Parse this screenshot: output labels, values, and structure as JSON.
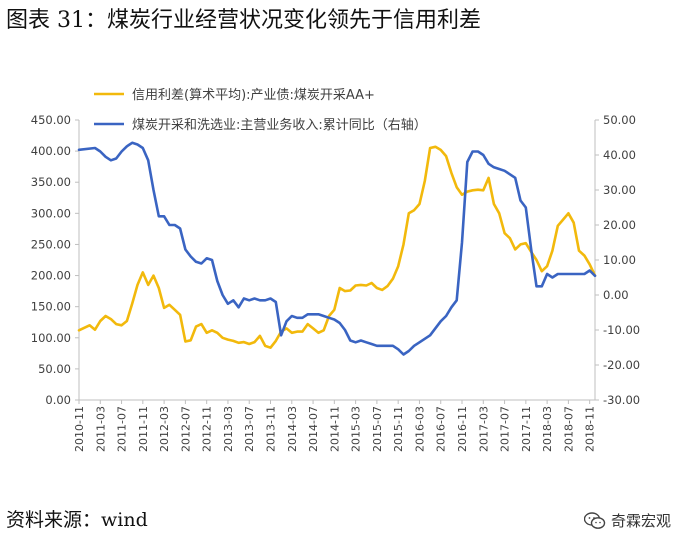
{
  "title": "图表 31：煤炭行业经营状况变化领先于信用利差",
  "source": "资料来源：wind",
  "watermark": {
    "text": "奇霖宏观",
    "icon": "wechat-icon"
  },
  "colors": {
    "credit_spread": "#F2B90C",
    "revenue_growth": "#3A64C2",
    "axis": "#BFBFBF",
    "text": "#404040"
  },
  "chart_data": {
    "type": "line",
    "legend_position": "top",
    "y_left": {
      "min": 0,
      "max": 450,
      "step": 50,
      "ticks": [
        "0.00",
        "50.00",
        "100.00",
        "150.00",
        "200.00",
        "250.00",
        "300.00",
        "350.00",
        "400.00",
        "450.00"
      ]
    },
    "y_right": {
      "min": -30,
      "max": 50,
      "step": 10,
      "ticks": [
        "-30.00",
        "-20.00",
        "-10.00",
        "0.00",
        "10.00",
        "20.00",
        "30.00",
        "40.00",
        "50.00"
      ]
    },
    "x_range": [
      "2010-11",
      "2018-12"
    ],
    "x_ticks": [
      "2010-11",
      "2011-03",
      "2011-07",
      "2011-11",
      "2012-03",
      "2012-07",
      "2012-11",
      "2013-03",
      "2013-07",
      "2013-11",
      "2014-03",
      "2014-07",
      "2014-11",
      "2015-03",
      "2015-07",
      "2015-11",
      "2016-03",
      "2016-07",
      "2016-11",
      "2017-03",
      "2017-07",
      "2017-11",
      "2018-03",
      "2018-07",
      "2018-11"
    ],
    "series": [
      {
        "name": "信用利差(算术平均):产业债:煤炭开采AA+",
        "axis": "left",
        "color_key": "credit_spread",
        "points": [
          [
            "2010-11",
            112
          ],
          [
            "2011-01",
            120
          ],
          [
            "2011-02",
            113
          ],
          [
            "2011-03",
            127
          ],
          [
            "2011-04",
            135
          ],
          [
            "2011-05",
            130
          ],
          [
            "2011-06",
            122
          ],
          [
            "2011-07",
            120
          ],
          [
            "2011-08",
            127
          ],
          [
            "2011-09",
            155
          ],
          [
            "2011-10",
            185
          ],
          [
            "2011-11",
            205
          ],
          [
            "2011-12",
            185
          ],
          [
            "2012-01",
            200
          ],
          [
            "2012-02",
            180
          ],
          [
            "2012-03",
            148
          ],
          [
            "2012-04",
            153
          ],
          [
            "2012-05",
            145
          ],
          [
            "2012-06",
            137
          ],
          [
            "2012-07",
            94
          ],
          [
            "2012-08",
            96
          ],
          [
            "2012-09",
            118
          ],
          [
            "2012-10",
            122
          ],
          [
            "2012-11",
            108
          ],
          [
            "2012-12",
            112
          ],
          [
            "2013-01",
            108
          ],
          [
            "2013-02",
            100
          ],
          [
            "2013-03",
            97
          ],
          [
            "2013-04",
            95
          ],
          [
            "2013-05",
            92
          ],
          [
            "2013-06",
            93
          ],
          [
            "2013-07",
            90
          ],
          [
            "2013-08",
            93
          ],
          [
            "2013-09",
            103
          ],
          [
            "2013-10",
            87
          ],
          [
            "2013-11",
            84
          ],
          [
            "2013-12",
            95
          ],
          [
            "2014-01",
            110
          ],
          [
            "2014-02",
            115
          ],
          [
            "2014-03",
            108
          ],
          [
            "2014-04",
            110
          ],
          [
            "2014-05",
            110
          ],
          [
            "2014-06",
            122
          ],
          [
            "2014-07",
            115
          ],
          [
            "2014-08",
            108
          ],
          [
            "2014-09",
            112
          ],
          [
            "2014-10",
            135
          ],
          [
            "2014-11",
            145
          ],
          [
            "2014-12",
            180
          ],
          [
            "2015-01",
            175
          ],
          [
            "2015-02",
            176
          ],
          [
            "2015-03",
            184
          ],
          [
            "2015-04",
            185
          ],
          [
            "2015-05",
            184
          ],
          [
            "2015-06",
            188
          ],
          [
            "2015-07",
            180
          ],
          [
            "2015-08",
            177
          ],
          [
            "2015-09",
            183
          ],
          [
            "2015-10",
            195
          ],
          [
            "2015-11",
            215
          ],
          [
            "2015-12",
            250
          ],
          [
            "2016-01",
            300
          ],
          [
            "2016-02",
            305
          ],
          [
            "2016-03",
            315
          ],
          [
            "2016-04",
            352
          ],
          [
            "2016-05",
            405
          ],
          [
            "2016-06",
            407
          ],
          [
            "2016-07",
            402
          ],
          [
            "2016-08",
            392
          ],
          [
            "2016-09",
            365
          ],
          [
            "2016-10",
            342
          ],
          [
            "2016-11",
            330
          ],
          [
            "2016-12",
            335
          ],
          [
            "2017-01",
            337
          ],
          [
            "2017-02",
            338
          ],
          [
            "2017-03",
            337
          ],
          [
            "2017-04",
            357
          ],
          [
            "2017-05",
            315
          ],
          [
            "2017-06",
            300
          ],
          [
            "2017-07",
            268
          ],
          [
            "2017-08",
            260
          ],
          [
            "2017-09",
            242
          ],
          [
            "2017-10",
            250
          ],
          [
            "2017-11",
            252
          ],
          [
            "2017-12",
            238
          ],
          [
            "2018-01",
            225
          ],
          [
            "2018-02",
            207
          ],
          [
            "2018-03",
            215
          ],
          [
            "2018-04",
            240
          ],
          [
            "2018-05",
            280
          ],
          [
            "2018-06",
            290
          ],
          [
            "2018-07",
            300
          ],
          [
            "2018-08",
            285
          ],
          [
            "2018-09",
            240
          ],
          [
            "2018-10",
            232
          ],
          [
            "2018-11",
            218
          ],
          [
            "2018-12",
            200
          ]
        ]
      },
      {
        "name": "煤炭开采和洗选业:主营业务收入:累计同比（右轴）",
        "axis": "right",
        "color_key": "revenue_growth",
        "points": [
          [
            "2010-11",
            41.5
          ],
          [
            "2011-02",
            42
          ],
          [
            "2011-03",
            41
          ],
          [
            "2011-04",
            39.5
          ],
          [
            "2011-05",
            38.5
          ],
          [
            "2011-06",
            39
          ],
          [
            "2011-07",
            41
          ],
          [
            "2011-08",
            42.5
          ],
          [
            "2011-09",
            43.5
          ],
          [
            "2011-10",
            43
          ],
          [
            "2011-11",
            42
          ],
          [
            "2011-12",
            38.5
          ],
          [
            "2012-01",
            30
          ],
          [
            "2012-02",
            22.5
          ],
          [
            "2012-03",
            22.5
          ],
          [
            "2012-04",
            20
          ],
          [
            "2012-05",
            20
          ],
          [
            "2012-06",
            19
          ],
          [
            "2012-07",
            13
          ],
          [
            "2012-08",
            11
          ],
          [
            "2012-09",
            9.5
          ],
          [
            "2012-10",
            9
          ],
          [
            "2012-11",
            10.5
          ],
          [
            "2012-12",
            10
          ],
          [
            "2013-01",
            4
          ],
          [
            "2013-02",
            0
          ],
          [
            "2013-03",
            -2.5
          ],
          [
            "2013-04",
            -1.5
          ],
          [
            "2013-05",
            -3.5
          ],
          [
            "2013-06",
            -1
          ],
          [
            "2013-07",
            -1.5
          ],
          [
            "2013-08",
            -1
          ],
          [
            "2013-09",
            -1.5
          ],
          [
            "2013-10",
            -1.5
          ],
          [
            "2013-11",
            -1
          ],
          [
            "2013-12",
            -2
          ],
          [
            "2014-01",
            -11.5
          ],
          [
            "2014-02",
            -7.5
          ],
          [
            "2014-03",
            -6
          ],
          [
            "2014-04",
            -6.5
          ],
          [
            "2014-05",
            -6.5
          ],
          [
            "2014-06",
            -5.5
          ],
          [
            "2014-07",
            -5.5
          ],
          [
            "2014-08",
            -5.5
          ],
          [
            "2014-09",
            -6
          ],
          [
            "2014-10",
            -6.5
          ],
          [
            "2014-11",
            -7
          ],
          [
            "2014-12",
            -8
          ],
          [
            "2015-01",
            -10
          ],
          [
            "2015-02",
            -13
          ],
          [
            "2015-03",
            -13.5
          ],
          [
            "2015-04",
            -13
          ],
          [
            "2015-05",
            -13.5
          ],
          [
            "2015-06",
            -14
          ],
          [
            "2015-07",
            -14.5
          ],
          [
            "2015-08",
            -14.5
          ],
          [
            "2015-09",
            -14.5
          ],
          [
            "2015-10",
            -14.5
          ],
          [
            "2015-11",
            -15.5
          ],
          [
            "2015-12",
            -17
          ],
          [
            "2016-01",
            -16
          ],
          [
            "2016-02",
            -14.5
          ],
          [
            "2016-03",
            -13.5
          ],
          [
            "2016-04",
            -12.5
          ],
          [
            "2016-05",
            -11.5
          ],
          [
            "2016-06",
            -9.5
          ],
          [
            "2016-07",
            -7.5
          ],
          [
            "2016-08",
            -6
          ],
          [
            "2016-09",
            -3.5
          ],
          [
            "2016-10",
            -1.5
          ],
          [
            "2016-11",
            15
          ],
          [
            "2016-12",
            38
          ],
          [
            "2017-01",
            41
          ],
          [
            "2017-02",
            41
          ],
          [
            "2017-03",
            40
          ],
          [
            "2017-04",
            37.5
          ],
          [
            "2017-05",
            36.5
          ],
          [
            "2017-06",
            36
          ],
          [
            "2017-07",
            35.5
          ],
          [
            "2017-08",
            34.5
          ],
          [
            "2017-09",
            33.5
          ],
          [
            "2017-10",
            27
          ],
          [
            "2017-11",
            25
          ],
          [
            "2017-12",
            13
          ],
          [
            "2018-01",
            2.5
          ],
          [
            "2018-02",
            2.5
          ],
          [
            "2018-03",
            6
          ],
          [
            "2018-04",
            5
          ],
          [
            "2018-05",
            6
          ],
          [
            "2018-06",
            6
          ],
          [
            "2018-07",
            6
          ],
          [
            "2018-08",
            6
          ],
          [
            "2018-09",
            6
          ],
          [
            "2018-10",
            6
          ],
          [
            "2018-11",
            7
          ],
          [
            "2018-12",
            5.5
          ]
        ]
      }
    ]
  }
}
